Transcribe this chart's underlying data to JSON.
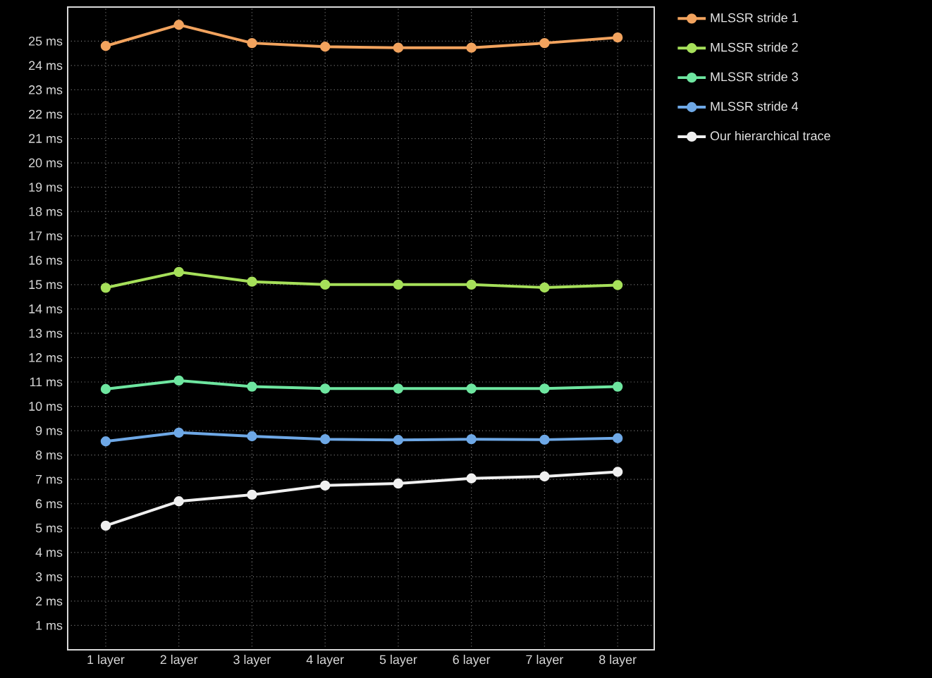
{
  "chart_data": {
    "type": "line",
    "categories": [
      "1 layer",
      "2 layer",
      "3 layer",
      "4 layer",
      "5 layer",
      "6 layer",
      "7 layer",
      "8 layer"
    ],
    "series": [
      {
        "name": "MLSSR stride 1",
        "color": "#f2a35e",
        "values": [
          24.8,
          25.67,
          24.92,
          24.77,
          24.73,
          24.73,
          24.92,
          25.15
        ]
      },
      {
        "name": "MLSSR stride 2",
        "color": "#a6e05a",
        "values": [
          14.87,
          15.52,
          15.12,
          15.0,
          15.0,
          15.0,
          14.88,
          14.98
        ]
      },
      {
        "name": "MLSSR stride 3",
        "color": "#6ee6a0",
        "values": [
          10.71,
          11.06,
          10.81,
          10.73,
          10.73,
          10.73,
          10.73,
          10.81
        ]
      },
      {
        "name": "MLSSR stride 4",
        "color": "#6ea8e6",
        "values": [
          8.56,
          8.92,
          8.77,
          8.65,
          8.62,
          8.65,
          8.63,
          8.69
        ]
      },
      {
        "name": "Our hierarchical trace",
        "color": "#f0f0f0",
        "values": [
          5.1,
          6.1,
          6.37,
          6.75,
          6.83,
          7.04,
          7.12,
          7.31
        ]
      }
    ],
    "ylim": [
      0,
      26.4
    ],
    "yticks": [
      {
        "value": 1,
        "label": "1 ms"
      },
      {
        "value": 2,
        "label": "2 ms"
      },
      {
        "value": 3,
        "label": "3 ms"
      },
      {
        "value": 4,
        "label": "4 ms"
      },
      {
        "value": 5,
        "label": "5 ms"
      },
      {
        "value": 6,
        "label": "6 ms"
      },
      {
        "value": 7,
        "label": "7 ms"
      },
      {
        "value": 8,
        "label": "8 ms"
      },
      {
        "value": 9,
        "label": "9 ms"
      },
      {
        "value": 10,
        "label": "10 ms"
      },
      {
        "value": 11,
        "label": "11 ms"
      },
      {
        "value": 12,
        "label": "12 ms"
      },
      {
        "value": 13,
        "label": "13 ms"
      },
      {
        "value": 14,
        "label": "14 ms"
      },
      {
        "value": 15,
        "label": "15 ms"
      },
      {
        "value": 16,
        "label": "16 ms"
      },
      {
        "value": 17,
        "label": "17 ms"
      },
      {
        "value": 18,
        "label": "18 ms"
      },
      {
        "value": 19,
        "label": "19 ms"
      },
      {
        "value": 20,
        "label": "20 ms"
      },
      {
        "value": 21,
        "label": "21 ms"
      },
      {
        "value": 22,
        "label": "22 ms"
      },
      {
        "value": 23,
        "label": "23 ms"
      },
      {
        "value": 24,
        "label": "24 ms"
      },
      {
        "value": 25,
        "label": "25 ms"
      }
    ],
    "grid": true,
    "legend": "top right",
    "marker": "circle",
    "line_style": "solid"
  }
}
